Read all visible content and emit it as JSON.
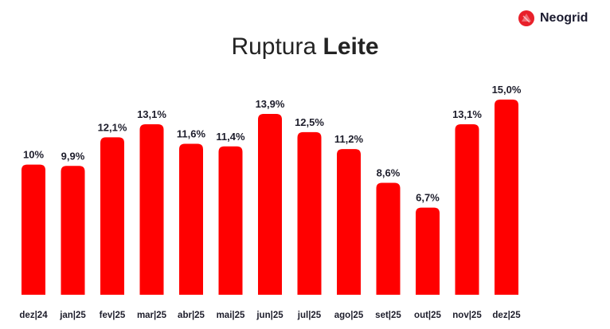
{
  "logo": {
    "name": "Neogrid",
    "icon": "neogrid-logo-icon",
    "color": "#e8202a"
  },
  "title": {
    "light": "Ruptura",
    "bold": "Leite"
  },
  "colors": {
    "bar": "#ff0000",
    "text": "#1d1d2b"
  },
  "chart_data": {
    "type": "bar",
    "title": "Ruptura Leite",
    "categories": [
      "dez|24",
      "jan|25",
      "fev|25",
      "mar|25",
      "abr|25",
      "mai|25",
      "jun|25",
      "jul|25",
      "ago|25",
      "set|25",
      "out|25",
      "nov|25",
      "dez|25"
    ],
    "values": [
      10.0,
      9.9,
      12.1,
      13.1,
      11.6,
      11.4,
      13.9,
      12.5,
      11.2,
      8.6,
      6.7,
      13.1,
      15.0
    ],
    "labels": [
      "10%",
      "9,9%",
      "12,1%",
      "13,1%",
      "11,6%",
      "11,4%",
      "13,9%",
      "12,5%",
      "11,2%",
      "8,6%",
      "6,7%",
      "13,1%",
      "15,0%"
    ],
    "xlabel": "",
    "ylabel": "",
    "ylim": [
      0,
      15.0
    ],
    "grid": false,
    "legend": "none"
  }
}
